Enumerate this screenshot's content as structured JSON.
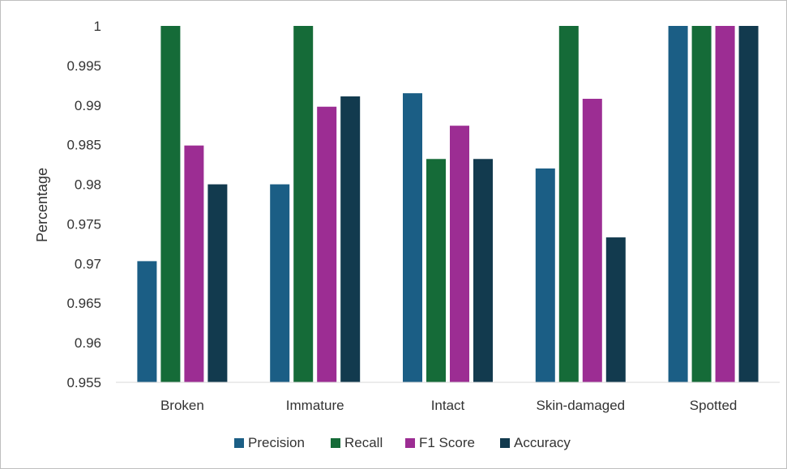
{
  "chart_data": {
    "type": "bar",
    "ylabel": "Percentage",
    "xlabel": "",
    "ylim": [
      0.955,
      1
    ],
    "yticks": [
      "0.955",
      "0.96",
      "0.965",
      "0.97",
      "0.975",
      "0.98",
      "0.985",
      "0.99",
      "0.995",
      "1"
    ],
    "categories": [
      "Broken",
      "Immature",
      "Intact",
      "Skin-damaged",
      "Spotted"
    ],
    "series": [
      {
        "name": "Precision",
        "color": "#1b5e85",
        "values": [
          0.9703,
          0.98,
          0.9915,
          0.982,
          1.0
        ]
      },
      {
        "name": "Recall",
        "color": "#156b38",
        "values": [
          1.0,
          1.0,
          0.9832,
          1.0,
          1.0
        ]
      },
      {
        "name": "F1 Score",
        "color": "#9c2d93",
        "values": [
          0.9849,
          0.9898,
          0.9874,
          0.9908,
          1.0
        ]
      },
      {
        "name": "Accuracy",
        "color": "#123a4e",
        "values": [
          0.98,
          0.9911,
          0.9832,
          0.9733,
          1.0
        ]
      }
    ],
    "grid": false,
    "legend_position": "bottom"
  }
}
